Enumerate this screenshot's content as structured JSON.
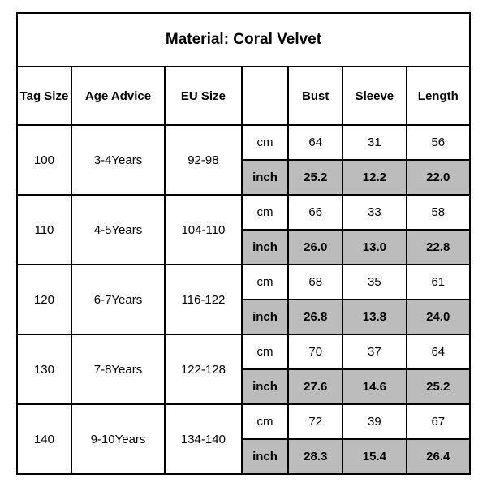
{
  "title": "Material: Coral Velvet",
  "headers": {
    "tag_size": "Tag Size",
    "age_advice": "Age Advice",
    "eu_size": "EU Size",
    "unit_blank": "",
    "bust": "Bust",
    "sleeve": "Sleeve",
    "length": "Length"
  },
  "unit_cm": "cm",
  "unit_inch": "inch",
  "rows": [
    {
      "tag": "100",
      "age": "3-4Years",
      "eu": "92-98",
      "cm": {
        "bust": "64",
        "sleeve": "31",
        "length": "56"
      },
      "inch": {
        "bust": "25.2",
        "sleeve": "12.2",
        "length": "22.0"
      }
    },
    {
      "tag": "110",
      "age": "4-5Years",
      "eu": "104-110",
      "cm": {
        "bust": "66",
        "sleeve": "33",
        "length": "58"
      },
      "inch": {
        "bust": "26.0",
        "sleeve": "13.0",
        "length": "22.8"
      }
    },
    {
      "tag": "120",
      "age": "6-7Years",
      "eu": "116-122",
      "cm": {
        "bust": "68",
        "sleeve": "35",
        "length": "61"
      },
      "inch": {
        "bust": "26.8",
        "sleeve": "13.8",
        "length": "24.0"
      }
    },
    {
      "tag": "130",
      "age": "7-8Years",
      "eu": "122-128",
      "cm": {
        "bust": "70",
        "sleeve": "37",
        "length": "64"
      },
      "inch": {
        "bust": "27.6",
        "sleeve": "14.6",
        "length": "25.2"
      }
    },
    {
      "tag": "140",
      "age": "9-10Years",
      "eu": "134-140",
      "cm": {
        "bust": "72",
        "sleeve": "39",
        "length": "67"
      },
      "inch": {
        "bust": "28.3",
        "sleeve": "15.4",
        "length": "26.4"
      }
    }
  ],
  "style": {
    "border_color": "#000000",
    "shaded_bg": "#bcbcbc",
    "plain_bg": "#ffffff",
    "title_fontsize": 19,
    "header_fontsize": 15,
    "cell_fontsize": 15,
    "font_family": "Arial",
    "columns": [
      "tag_size",
      "age_advice",
      "eu_size",
      "unit",
      "bust",
      "sleeve",
      "length"
    ]
  }
}
